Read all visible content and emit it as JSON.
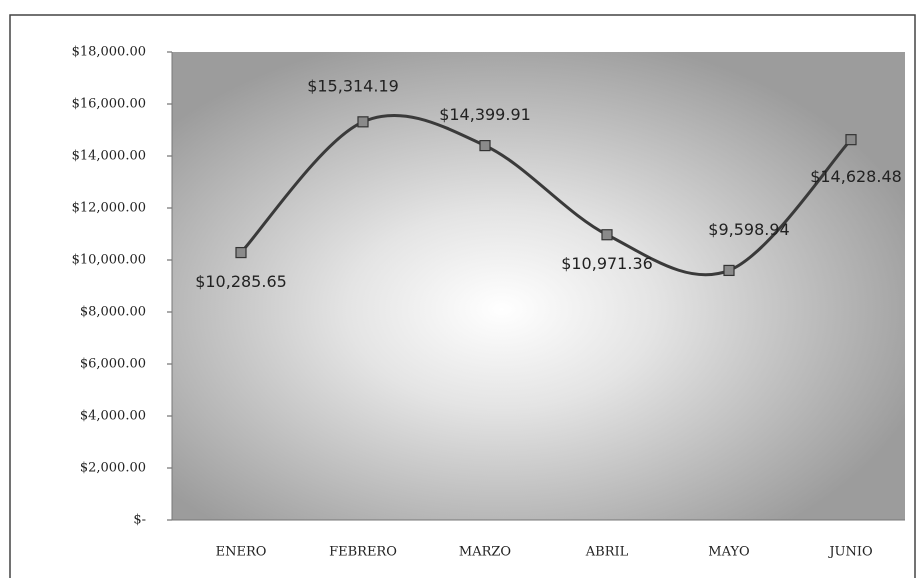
{
  "chart_data": {
    "type": "line",
    "categories": [
      "ENERO",
      "FEBRERO",
      "MARZO",
      "ABRIL",
      "MAYO",
      "JUNIO"
    ],
    "values": [
      10285.65,
      15314.19,
      14399.91,
      10971.36,
      9598.94,
      14628.48
    ],
    "value_labels": [
      "$10,285.65",
      "$15,314.19",
      "$14,399.91",
      "$10,971.36",
      "$9,598.94",
      "$14,628.48"
    ],
    "color": "#3a3a3a",
    "smooth": true,
    "ylim": [
      0,
      18000
    ],
    "yticks": [
      {
        "value": 0,
        "label": "$-"
      },
      {
        "value": 2000,
        "label": "$2,000.00"
      },
      {
        "value": 4000,
        "label": "$4,000.00"
      },
      {
        "value": 6000,
        "label": "$6,000.00"
      },
      {
        "value": 8000,
        "label": "$8,000.00"
      },
      {
        "value": 10000,
        "label": "$10,000.00"
      },
      {
        "value": 12000,
        "label": "$12,000.00"
      },
      {
        "value": 14000,
        "label": "$14,000.00"
      },
      {
        "value": 16000,
        "label": "$16,000.00"
      },
      {
        "value": 18000,
        "label": "$18,000.00"
      }
    ]
  }
}
